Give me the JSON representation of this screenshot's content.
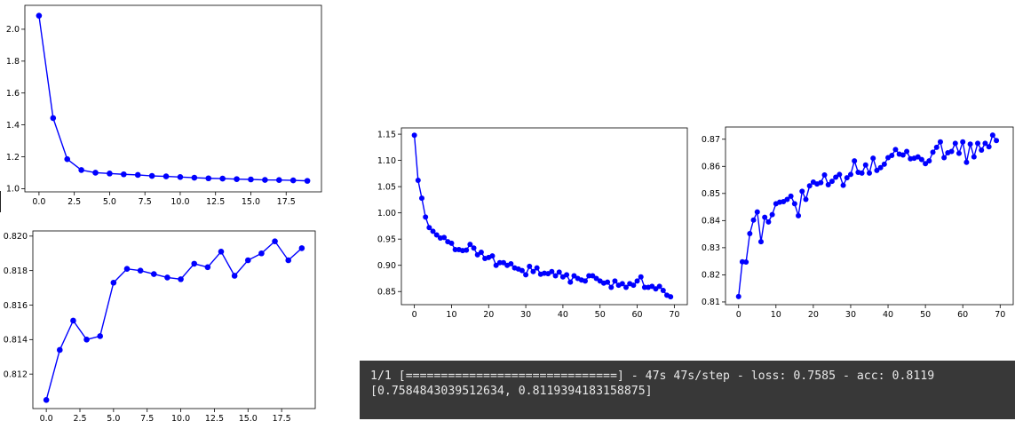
{
  "chart_data": [
    {
      "type": "line",
      "title": "",
      "xlabel": "",
      "ylabel": "",
      "xlim": [
        -1,
        20
      ],
      "ylim": [
        0.98,
        2.15
      ],
      "xticks": [
        "0.0",
        "2.5",
        "5.0",
        "7.5",
        "10.0",
        "12.5",
        "15.0",
        "17.5"
      ],
      "yticks": [
        "1.0",
        "1.2",
        "1.4",
        "1.6",
        "1.8",
        "2.0"
      ],
      "series": [
        {
          "color": "#0000ff",
          "x": [
            0,
            1,
            2,
            3,
            4,
            5,
            6,
            7,
            8,
            9,
            10,
            11,
            12,
            13,
            14,
            15,
            16,
            17,
            18,
            19
          ],
          "y": [
            2.085,
            1.443,
            1.185,
            1.117,
            1.1,
            1.095,
            1.09,
            1.086,
            1.08,
            1.077,
            1.073,
            1.069,
            1.065,
            1.063,
            1.06,
            1.058,
            1.055,
            1.054,
            1.052,
            1.049
          ]
        }
      ]
    },
    {
      "type": "line",
      "title": "",
      "xlabel": "",
      "ylabel": "",
      "xlim": [
        -1,
        20
      ],
      "ylim": [
        0.81,
        0.8203
      ],
      "xticks": [
        "0.0",
        "2.5",
        "5.0",
        "7.5",
        "10.0",
        "12.5",
        "15.0",
        "17.5"
      ],
      "yticks": [
        "0.812",
        "0.814",
        "0.816",
        "0.818",
        "0.820"
      ],
      "series": [
        {
          "color": "#0000ff",
          "x": [
            0,
            1,
            2,
            3,
            4,
            5,
            6,
            7,
            8,
            9,
            10,
            11,
            12,
            13,
            14,
            15,
            16,
            17,
            18,
            19
          ],
          "y": [
            0.8105,
            0.8134,
            0.8151,
            0.814,
            0.8142,
            0.8173,
            0.8181,
            0.818,
            0.8178,
            0.8176,
            0.8175,
            0.8184,
            0.8182,
            0.8191,
            0.8177,
            0.8186,
            0.819,
            0.8197,
            0.8186,
            0.8193
          ]
        }
      ]
    },
    {
      "type": "line",
      "title": "",
      "xlabel": "",
      "ylabel": "",
      "xlim": [
        -3.5,
        73.5
      ],
      "ylim": [
        0.825,
        1.162
      ],
      "xticks": [
        "0",
        "10",
        "20",
        "30",
        "40",
        "50",
        "60",
        "70"
      ],
      "yticks": [
        "0.85",
        "0.90",
        "0.95",
        "1.00",
        "1.05",
        "1.10",
        "1.15"
      ],
      "series": [
        {
          "color": "#0000ff",
          "x": [
            0,
            1,
            2,
            3,
            4,
            5,
            6,
            7,
            8,
            9,
            10,
            11,
            12,
            13,
            14,
            15,
            16,
            17,
            18,
            19,
            20,
            21,
            22,
            23,
            24,
            25,
            26,
            27,
            28,
            29,
            30,
            31,
            32,
            33,
            34,
            35,
            36,
            37,
            38,
            39,
            40,
            41,
            42,
            43,
            44,
            45,
            46,
            47,
            48,
            49,
            50,
            51,
            52,
            53,
            54,
            55,
            56,
            57,
            58,
            59,
            60,
            61,
            62,
            63,
            64,
            65,
            66,
            67,
            68,
            69
          ],
          "y": [
            1.148,
            1.062,
            1.028,
            0.992,
            0.972,
            0.965,
            0.958,
            0.952,
            0.953,
            0.945,
            0.942,
            0.93,
            0.93,
            0.928,
            0.929,
            0.94,
            0.933,
            0.92,
            0.925,
            0.913,
            0.915,
            0.918,
            0.9,
            0.905,
            0.905,
            0.9,
            0.903,
            0.895,
            0.893,
            0.89,
            0.882,
            0.898,
            0.888,
            0.895,
            0.883,
            0.885,
            0.884,
            0.888,
            0.88,
            0.887,
            0.878,
            0.882,
            0.868,
            0.88,
            0.875,
            0.872,
            0.87,
            0.88,
            0.88,
            0.875,
            0.87,
            0.866,
            0.868,
            0.858,
            0.87,
            0.862,
            0.865,
            0.858,
            0.865,
            0.862,
            0.87,
            0.878,
            0.858,
            0.858,
            0.86,
            0.855,
            0.86,
            0.852,
            0.843,
            0.84
          ]
        }
      ]
    },
    {
      "type": "line",
      "title": "",
      "xlabel": "",
      "ylabel": "",
      "xlim": [
        -3.5,
        73.5
      ],
      "ylim": [
        0.809,
        0.8745
      ],
      "xticks": [
        "0",
        "10",
        "20",
        "30",
        "40",
        "50",
        "60",
        "70"
      ],
      "yticks": [
        "0.81",
        "0.82",
        "0.83",
        "0.84",
        "0.85",
        "0.86",
        "0.87"
      ],
      "series": [
        {
          "color": "#0000ff",
          "x": [
            0,
            1,
            2,
            3,
            4,
            5,
            6,
            7,
            8,
            9,
            10,
            11,
            12,
            13,
            14,
            15,
            16,
            17,
            18,
            19,
            20,
            21,
            22,
            23,
            24,
            25,
            26,
            27,
            28,
            29,
            30,
            31,
            32,
            33,
            34,
            35,
            36,
            37,
            38,
            39,
            40,
            41,
            42,
            43,
            44,
            45,
            46,
            47,
            48,
            49,
            50,
            51,
            52,
            53,
            54,
            55,
            56,
            57,
            58,
            59,
            60,
            61,
            62,
            63,
            64,
            65,
            66,
            67,
            68,
            69
          ],
          "y": [
            0.812,
            0.8248,
            0.8247,
            0.8352,
            0.8402,
            0.8432,
            0.8322,
            0.8412,
            0.8395,
            0.8422,
            0.8462,
            0.8468,
            0.847,
            0.8478,
            0.849,
            0.8462,
            0.8418,
            0.8508,
            0.8478,
            0.8528,
            0.8542,
            0.8535,
            0.854,
            0.8568,
            0.8532,
            0.8545,
            0.856,
            0.857,
            0.853,
            0.8558,
            0.857,
            0.862,
            0.8578,
            0.8575,
            0.8605,
            0.8575,
            0.863,
            0.8585,
            0.8595,
            0.8608,
            0.8632,
            0.864,
            0.8662,
            0.8645,
            0.8642,
            0.8655,
            0.8628,
            0.863,
            0.8635,
            0.8625,
            0.861,
            0.862,
            0.8652,
            0.867,
            0.869,
            0.8632,
            0.865,
            0.8655,
            0.8685,
            0.8648,
            0.869,
            0.8615,
            0.8682,
            0.8635,
            0.8685,
            0.866,
            0.8685,
            0.8672,
            0.8715,
            0.8695
          ]
        }
      ]
    }
  ],
  "terminal": {
    "line1": "1/1 [==============================] - 47s 47s/step - loss: 0.7585 - acc: 0.8119",
    "line2": "[0.7584843039512634, 0.8119394183158875]"
  }
}
